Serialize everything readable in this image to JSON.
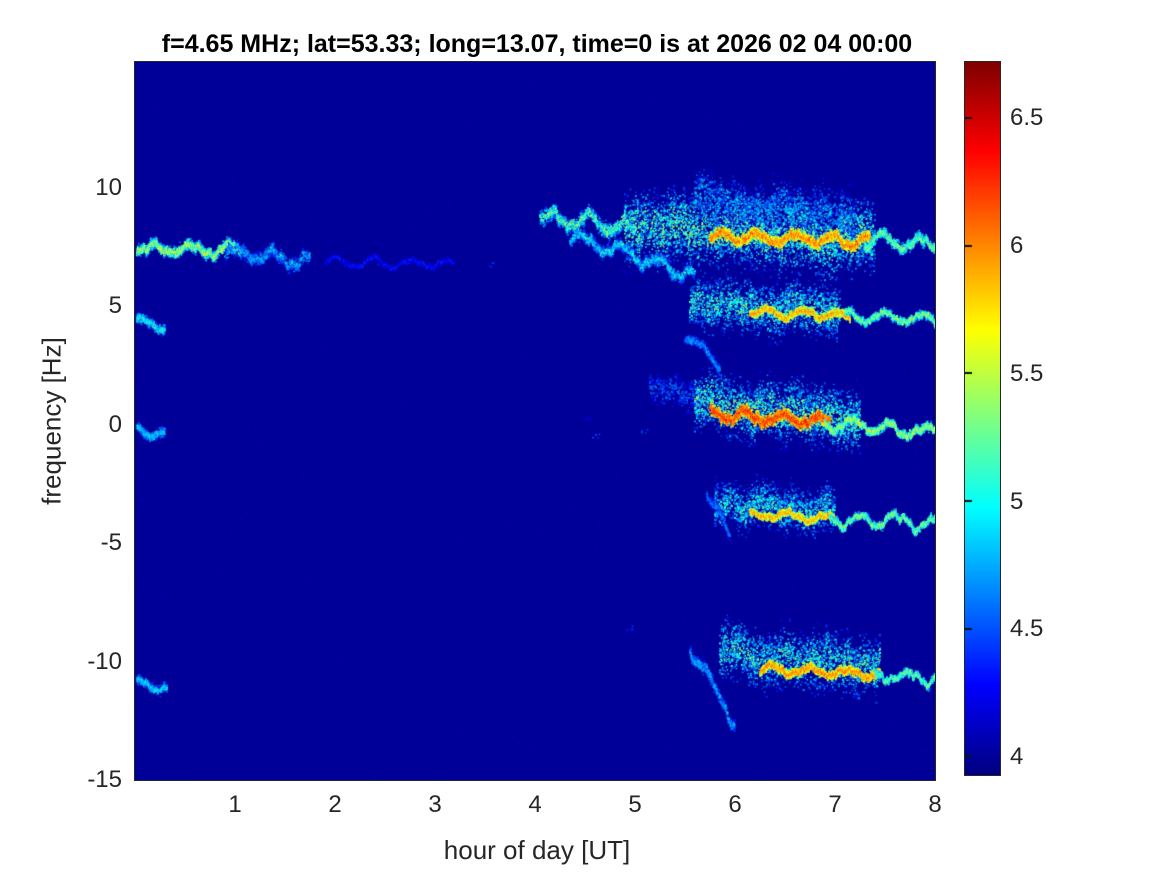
{
  "chart_data": {
    "type": "heatmap",
    "subtype": "doppler-spectrogram",
    "title": "f=4.65 MHz;  lat=53.33; long=13.07, time=0 is at 2026 02 04 00:00",
    "xlabel": "hour of day [UT]",
    "ylabel": "frequency [Hz]",
    "xlim": [
      0,
      8
    ],
    "ylim": [
      -15,
      15.3
    ],
    "xticks": [
      "1",
      "2",
      "3",
      "4",
      "5",
      "6",
      "7",
      "8"
    ],
    "xtick_values": [
      1,
      2,
      3,
      4,
      5,
      6,
      7,
      8
    ],
    "yticks": [
      "10",
      "5",
      "0",
      "-5",
      "-10",
      "-15"
    ],
    "ytick_values": [
      10,
      5,
      0,
      -5,
      -10,
      -15
    ],
    "grid": false,
    "colorbar": {
      "colormap": "jet",
      "min": 3.93,
      "max": 6.72,
      "ticks": [
        "4",
        "4.5",
        "5",
        "5.5",
        "6",
        "6.5"
      ],
      "tick_values": [
        4,
        4.5,
        5,
        5.5,
        6,
        6.5
      ]
    },
    "background_value": 4.0,
    "features": [
      {
        "name": "+7.4Hz left streak",
        "kind": "line",
        "t": [
          0.02,
          1.05
        ],
        "f": [
          7.45,
          7.35
        ],
        "spread": 0.22,
        "value": [
          4.4,
          5.9
        ],
        "density": 1.4,
        "wiggle": 0.25
      },
      {
        "name": "+7.1Hz left tail",
        "kind": "line",
        "t": [
          0.9,
          1.75
        ],
        "f": [
          7.3,
          6.9
        ],
        "spread": 0.3,
        "value": [
          4.2,
          5.0
        ],
        "density": 0.7,
        "wiggle": 0.3
      },
      {
        "name": "+6.8Hz faint mid trace",
        "kind": "line",
        "t": [
          1.9,
          3.2
        ],
        "f": [
          6.85,
          6.75
        ],
        "spread": 0.12,
        "value": [
          4.05,
          4.45
        ],
        "density": 0.35,
        "wiggle": 0.2
      },
      {
        "name": "+8.5Hz onset streak",
        "kind": "line",
        "t": [
          4.05,
          5.0
        ],
        "f": [
          8.75,
          8.2
        ],
        "spread": 0.3,
        "value": [
          4.3,
          5.6
        ],
        "density": 1.0,
        "wiggle": 0.35
      },
      {
        "name": "+8Hz diffuse cloud",
        "kind": "blob",
        "t": [
          4.9,
          7.4
        ],
        "f": [
          8.3,
          7.9
        ],
        "spread": 1.05,
        "value": [
          4.15,
          5.5
        ],
        "density": 1.3,
        "wiggle": 0.5
      },
      {
        "name": "+9Hz upper scatter",
        "kind": "blob",
        "t": [
          5.6,
          7.2
        ],
        "f": [
          9.6,
          8.8
        ],
        "spread": 0.7,
        "value": [
          4.1,
          5.0
        ],
        "density": 0.6,
        "wiggle": 0.5
      },
      {
        "name": "+7.8Hz hot core",
        "kind": "line",
        "t": [
          5.75,
          7.35
        ],
        "f": [
          7.95,
          7.7
        ],
        "spread": 0.22,
        "value": [
          5.3,
          6.35
        ],
        "density": 1.6,
        "wiggle": 0.22
      },
      {
        "name": "+7.7Hz wiggly tail",
        "kind": "line",
        "t": [
          7.3,
          8.0
        ],
        "f": [
          7.75,
          7.6
        ],
        "spread": 0.22,
        "value": [
          4.5,
          5.6
        ],
        "density": 1.1,
        "wiggle": 0.3
      },
      {
        "name": "+7Hz descender",
        "kind": "line",
        "t": [
          4.35,
          5.6
        ],
        "f": [
          8.0,
          6.3
        ],
        "spread": 0.25,
        "value": [
          4.2,
          5.2
        ],
        "density": 0.8,
        "wiggle": 0.3
      },
      {
        "name": "+4.2Hz left spot",
        "kind": "line",
        "t": [
          0.02,
          0.3
        ],
        "f": [
          4.35,
          4.05
        ],
        "spread": 0.2,
        "value": [
          4.3,
          5.3
        ],
        "density": 1.2,
        "wiggle": 0.2
      },
      {
        "name": "+4.8Hz cloud",
        "kind": "blob",
        "t": [
          5.55,
          7.05
        ],
        "f": [
          5.1,
          4.7
        ],
        "spread": 0.75,
        "value": [
          4.15,
          5.4
        ],
        "density": 1.0,
        "wiggle": 0.45
      },
      {
        "name": "+4.6Hz hot core",
        "kind": "line",
        "t": [
          6.15,
          7.15
        ],
        "f": [
          4.75,
          4.6
        ],
        "spread": 0.16,
        "value": [
          5.2,
          6.25
        ],
        "density": 1.4,
        "wiggle": 0.2
      },
      {
        "name": "+4.5Hz wiggly tail",
        "kind": "line",
        "t": [
          7.1,
          8.0
        ],
        "f": [
          4.6,
          4.45
        ],
        "spread": 0.16,
        "value": [
          4.5,
          5.7
        ],
        "density": 1.1,
        "wiggle": 0.25
      },
      {
        "name": "+3Hz downward spur",
        "kind": "line",
        "t": [
          5.5,
          5.85
        ],
        "f": [
          3.7,
          2.6
        ],
        "spread": 0.2,
        "value": [
          4.2,
          4.9
        ],
        "density": 0.7,
        "wiggle": 0.25
      },
      {
        "name": "0Hz left spot",
        "kind": "line",
        "t": [
          0.02,
          0.3
        ],
        "f": [
          -0.15,
          -0.45
        ],
        "spread": 0.2,
        "value": [
          4.3,
          5.1
        ],
        "density": 1.0,
        "wiggle": 0.2
      },
      {
        "name": "+1.5Hz precursor scatter",
        "kind": "blob",
        "t": [
          5.15,
          5.65
        ],
        "f": [
          1.7,
          1.1
        ],
        "spread": 0.45,
        "value": [
          4.1,
          4.7
        ],
        "density": 0.5,
        "wiggle": 0.4
      },
      {
        "name": "0Hz cloud",
        "kind": "blob",
        "t": [
          5.6,
          7.25
        ],
        "f": [
          0.9,
          0.3
        ],
        "spread": 0.85,
        "value": [
          4.15,
          5.5
        ],
        "density": 1.1,
        "wiggle": 0.5
      },
      {
        "name": "0Hz intense hot core",
        "kind": "line",
        "t": [
          5.75,
          6.95
        ],
        "f": [
          0.45,
          0.1
        ],
        "spread": 0.24,
        "value": [
          5.5,
          6.55
        ],
        "density": 1.7,
        "wiggle": 0.22
      },
      {
        "name": "0Hz wiggly tail",
        "kind": "line",
        "t": [
          6.9,
          8.0
        ],
        "f": [
          0.05,
          -0.35
        ],
        "spread": 0.18,
        "value": [
          4.6,
          5.8
        ],
        "density": 1.2,
        "wiggle": 0.3
      },
      {
        "name": "-3.5Hz cloud",
        "kind": "blob",
        "t": [
          5.8,
          7.0
        ],
        "f": [
          -3.3,
          -3.7
        ],
        "spread": 0.65,
        "value": [
          4.15,
          5.3
        ],
        "density": 0.9,
        "wiggle": 0.45
      },
      {
        "name": "-3.9Hz hot core",
        "kind": "line",
        "t": [
          6.15,
          7.0
        ],
        "f": [
          -3.8,
          -3.95
        ],
        "spread": 0.15,
        "value": [
          5.2,
          6.2
        ],
        "density": 1.3,
        "wiggle": 0.2
      },
      {
        "name": "-4.1Hz wiggly tail",
        "kind": "line",
        "t": [
          6.95,
          8.0
        ],
        "f": [
          -3.95,
          -4.2
        ],
        "spread": 0.15,
        "value": [
          4.5,
          5.7
        ],
        "density": 1.1,
        "wiggle": 0.3
      },
      {
        "name": "-4.6Hz spur",
        "kind": "line",
        "t": [
          5.72,
          5.95
        ],
        "f": [
          -2.9,
          -4.6
        ],
        "spread": 0.2,
        "value": [
          4.2,
          4.8
        ],
        "density": 0.6,
        "wiggle": 0.2
      },
      {
        "name": "-11Hz left spot",
        "kind": "line",
        "t": [
          0.02,
          0.32
        ],
        "f": [
          -10.85,
          -11.15
        ],
        "spread": 0.2,
        "value": [
          4.3,
          5.1
        ],
        "density": 1.0,
        "wiggle": 0.2
      },
      {
        "name": "-10Hz cloud",
        "kind": "blob",
        "t": [
          5.85,
          7.45
        ],
        "f": [
          -9.7,
          -10.2
        ],
        "spread": 0.85,
        "value": [
          4.15,
          5.4
        ],
        "density": 1.0,
        "wiggle": 0.5
      },
      {
        "name": "-12.5Hz descending hook",
        "kind": "line",
        "t": [
          5.55,
          6.0
        ],
        "f": [
          -9.3,
          -12.7
        ],
        "spread": 0.25,
        "value": [
          4.2,
          5.0
        ],
        "density": 0.8,
        "wiggle": 0.3
      },
      {
        "name": "-10.4Hz hot core",
        "kind": "line",
        "t": [
          6.25,
          7.45
        ],
        "f": [
          -10.35,
          -10.55
        ],
        "spread": 0.18,
        "value": [
          5.3,
          6.3
        ],
        "density": 1.5,
        "wiggle": 0.2
      },
      {
        "name": "-10.7Hz wiggly tail",
        "kind": "line",
        "t": [
          7.4,
          8.0
        ],
        "f": [
          -10.55,
          -10.75
        ],
        "spread": 0.15,
        "value": [
          4.5,
          5.6
        ],
        "density": 1.1,
        "wiggle": 0.25
      }
    ],
    "specks": [
      {
        "t": 3.55,
        "f": 6.75
      },
      {
        "t": 2.45,
        "f": 6.85
      },
      {
        "t": 4.6,
        "f": -0.5
      },
      {
        "t": 4.95,
        "f": -8.6
      },
      {
        "t": 5.1,
        "f": -0.2
      },
      {
        "t": 4.5,
        "f": 0.3
      }
    ]
  }
}
